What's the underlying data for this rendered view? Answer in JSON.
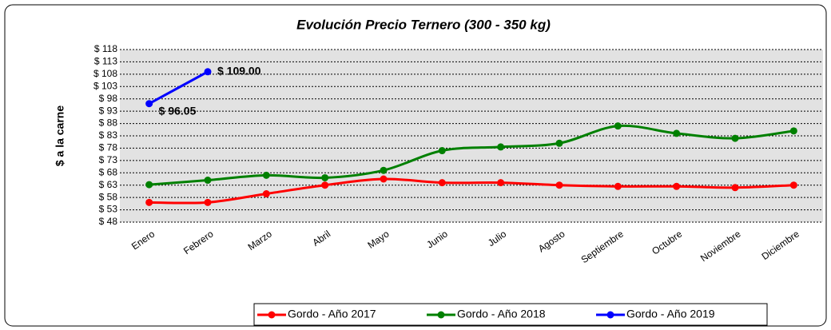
{
  "chart_data": {
    "type": "line",
    "title": "Evolución Precio Ternero (300 - 350 kg)",
    "y_label": "$ a la carne",
    "categories": [
      "Enero",
      "Febrero",
      "Marzo",
      "Abril",
      "Mayo",
      "Junio",
      "Julio",
      "Agosto",
      "Septiembre",
      "Octubre",
      "Noviembre",
      "Diciembre"
    ],
    "series": [
      {
        "name": "Gordo - Año 2017",
        "color": "#ff0000",
        "values": [
          56,
          56,
          59.5,
          63,
          65.5,
          64,
          64,
          63,
          62.5,
          62.5,
          62,
          63
        ]
      },
      {
        "name": "Gordo - Año 2018",
        "color": "#008000",
        "values": [
          63.2,
          65,
          67,
          66,
          69,
          77,
          78.5,
          80,
          87,
          84,
          82,
          85
        ]
      },
      {
        "name": "Gordo - Año 2019",
        "color": "#0000ff",
        "values": [
          96.05,
          109.0,
          null,
          null,
          null,
          null,
          null,
          null,
          null,
          null,
          null,
          null
        ],
        "value_labels": [
          "$ 96.05",
          "$ 109.00",
          null,
          null,
          null,
          null,
          null,
          null,
          null,
          null,
          null,
          null
        ]
      }
    ],
    "ylim": [
      48,
      118
    ],
    "yticks": [
      {
        "value": 48,
        "label": "$ 48"
      },
      {
        "value": 53,
        "label": "$ 53"
      },
      {
        "value": 58,
        "label": "$ 58"
      },
      {
        "value": 63,
        "label": "$ 63"
      },
      {
        "value": 68,
        "label": "$ 68"
      },
      {
        "value": 73,
        "label": "$ 73"
      },
      {
        "value": 78,
        "label": "$ 78"
      },
      {
        "value": 83,
        "label": "$ 83"
      },
      {
        "value": 88,
        "label": "$ 88"
      },
      {
        "value": 93,
        "label": "$ 93"
      },
      {
        "value": 98,
        "label": "$ 98"
      },
      {
        "value": 103,
        "label": "$ 103"
      },
      {
        "value": 108,
        "label": "$ 108"
      },
      {
        "value": 113,
        "label": "$ 113"
      },
      {
        "value": 118,
        "label": "$ 118"
      }
    ],
    "grid": true,
    "legend": "bottom"
  }
}
